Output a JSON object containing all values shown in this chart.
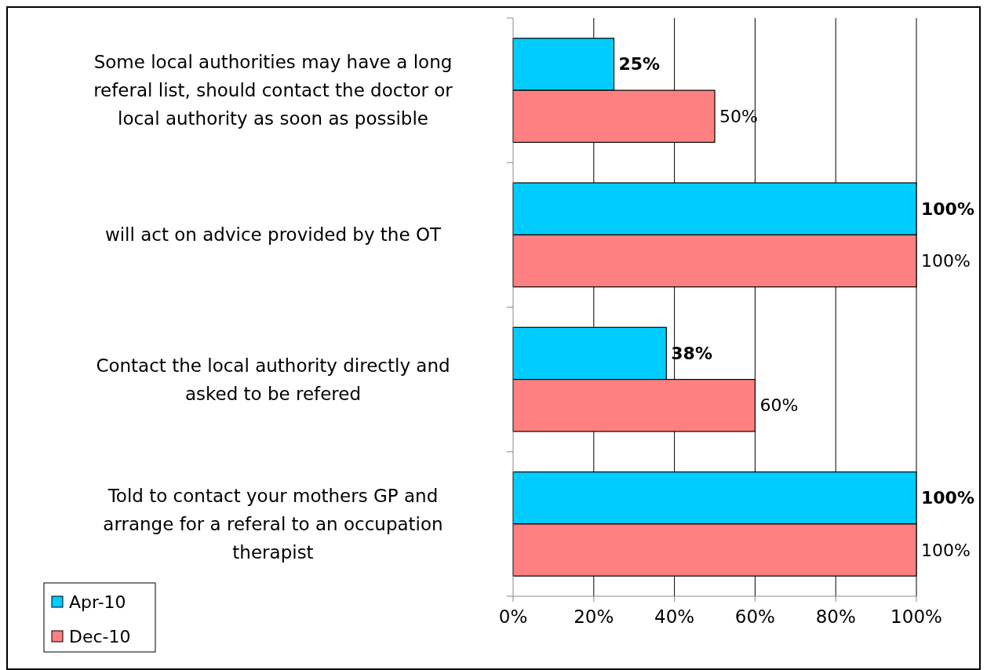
{
  "chart_data": {
    "type": "bar",
    "orientation": "horizontal",
    "categories": [
      "Some local authorities may have a long referal list, should contact the doctor or local authority as soon as possible",
      "will act on advice provided by the OT",
      "Contact the local authority directly and asked to be refered",
      "Told to contact your mothers GP and arrange for a referal to an occupation therapist"
    ],
    "series": [
      {
        "name": "Apr-10",
        "color": "#00ccff",
        "values": [
          25,
          100,
          38,
          100
        ],
        "value_labels": [
          "25%",
          "100%",
          "38%",
          "100%"
        ]
      },
      {
        "name": "Dec-10",
        "color": "#ff8080",
        "values": [
          50,
          100,
          60,
          100
        ],
        "value_labels": [
          "50%",
          "100%",
          "60%",
          "100%"
        ]
      }
    ],
    "xlim": [
      0,
      100
    ],
    "xticks": [
      {
        "value": 0,
        "label": "0%"
      },
      {
        "value": 20,
        "label": "20%"
      },
      {
        "value": 40,
        "label": "40%"
      },
      {
        "value": 60,
        "label": "60%"
      },
      {
        "value": 80,
        "label": "80%"
      },
      {
        "value": 100,
        "label": "100%"
      }
    ],
    "grid": "x",
    "legend": "bottom left"
  }
}
